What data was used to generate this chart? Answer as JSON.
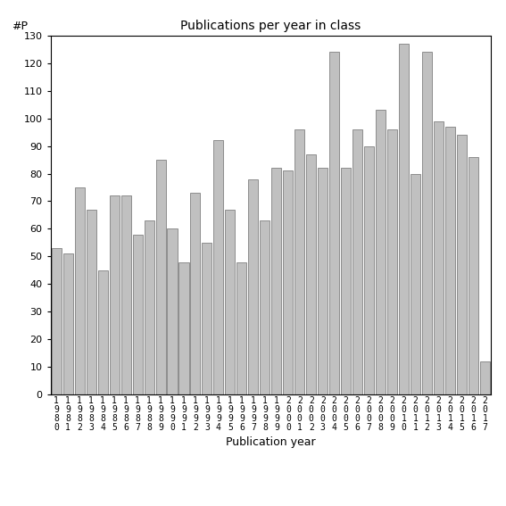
{
  "title": "Publications per year in class",
  "xlabel": "Publication year",
  "ylabel": "#P",
  "bar_color": "#c0c0c0",
  "bar_edgecolor": "#808080",
  "background_color": "#ffffff",
  "ylim": [
    0,
    130
  ],
  "yticks": [
    0,
    10,
    20,
    30,
    40,
    50,
    60,
    70,
    80,
    90,
    100,
    110,
    120,
    130
  ],
  "categories": [
    "1\n9\n8\n0",
    "1\n9\n8\n1",
    "1\n9\n8\n2",
    "1\n9\n8\n3",
    "1\n9\n8\n4",
    "1\n9\n8\n5",
    "1\n9\n8\n6",
    "1\n9\n8\n7",
    "1\n9\n8\n8",
    "1\n9\n8\n9",
    "1\n9\n9\n0",
    "1\n9\n9\n1",
    "1\n9\n9\n2",
    "1\n9\n9\n3",
    "1\n9\n9\n4",
    "1\n9\n9\n5",
    "1\n9\n9\n6",
    "1\n9\n9\n7",
    "1\n9\n9\n8",
    "1\n9\n9\n9",
    "2\n0\n0\n0",
    "2\n0\n0\n1",
    "2\n0\n0\n2",
    "2\n0\n0\n3",
    "2\n0\n0\n4",
    "2\n0\n0\n5",
    "2\n0\n0\n6",
    "2\n0\n0\n7",
    "2\n0\n0\n8",
    "2\n0\n0\n9",
    "2\n0\n1\n0",
    "2\n0\n1\n1",
    "2\n0\n1\n2",
    "2\n0\n1\n3",
    "2\n0\n1\n4",
    "2\n0\n1\n5",
    "2\n0\n1\n6",
    "2\n0\n1\n7"
  ],
  "values": [
    53,
    51,
    75,
    67,
    45,
    72,
    72,
    58,
    63,
    85,
    60,
    48,
    73,
    55,
    92,
    67,
    48,
    78,
    63,
    82,
    81,
    96,
    87,
    82,
    124,
    82,
    96,
    90,
    103,
    96,
    127,
    80,
    124,
    99,
    97,
    94,
    86,
    12
  ],
  "title_fontsize": 10,
  "axis_label_fontsize": 9,
  "tick_fontsize": 8,
  "xtick_fontsize": 7
}
